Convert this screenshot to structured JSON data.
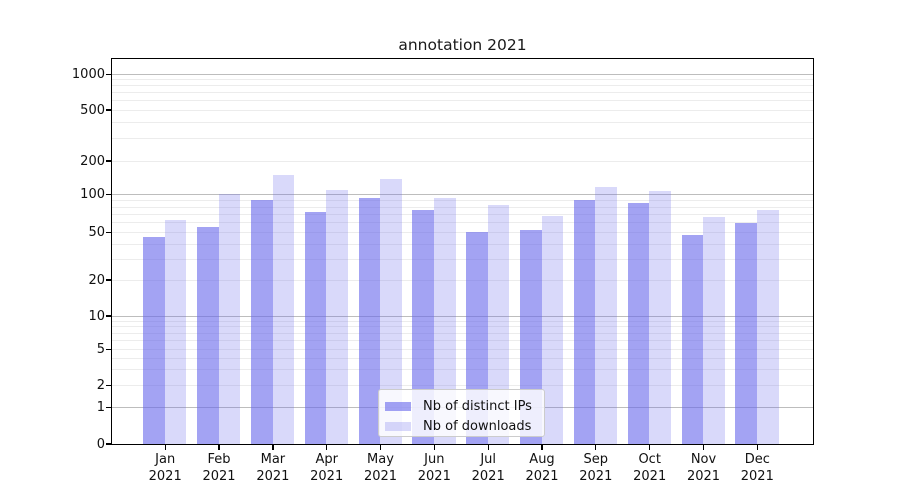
{
  "chart_data": {
    "type": "bar",
    "title": "annotation 2021",
    "categories": [
      "Jan 2021",
      "Feb 2021",
      "Mar 2021",
      "Apr 2021",
      "May 2021",
      "Jun 2021",
      "Jul 2021",
      "Aug 2021",
      "Sep 2021",
      "Oct 2021",
      "Nov 2021",
      "Dec 2021"
    ],
    "series": [
      {
        "name": "Nb of distinct IPs",
        "color": "rgba(102,102,235,0.6)",
        "values": [
          46,
          55,
          91,
          73,
          93,
          76,
          50,
          52,
          91,
          86,
          48,
          59
        ]
      },
      {
        "name": "Nb of downloads",
        "color": "rgba(102,102,235,0.25)",
        "values": [
          63,
          100,
          150,
          109,
          137,
          93,
          82,
          67,
          117,
          107,
          66,
          76
        ]
      }
    ],
    "y_ticks": [
      0,
      1,
      2,
      5,
      10,
      20,
      50,
      100,
      200,
      500,
      1000
    ],
    "y_major_gridlines": [
      1,
      10,
      100,
      1000
    ],
    "y_minor_gridlines": [
      2,
      3,
      4,
      5,
      6,
      7,
      8,
      9,
      20,
      30,
      40,
      50,
      60,
      70,
      80,
      90,
      200,
      300,
      400,
      500,
      600,
      700,
      800,
      900
    ],
    "yscale": "symlog",
    "ylim": [
      0,
      1340
    ],
    "grid": "horizontal",
    "legend_position": "lower center",
    "colors": {
      "bar_base": "#6666eb",
      "grid_major": "#bdbdbd",
      "grid_minor": "#ececec",
      "spine": "#000000",
      "text": "#111111"
    }
  }
}
